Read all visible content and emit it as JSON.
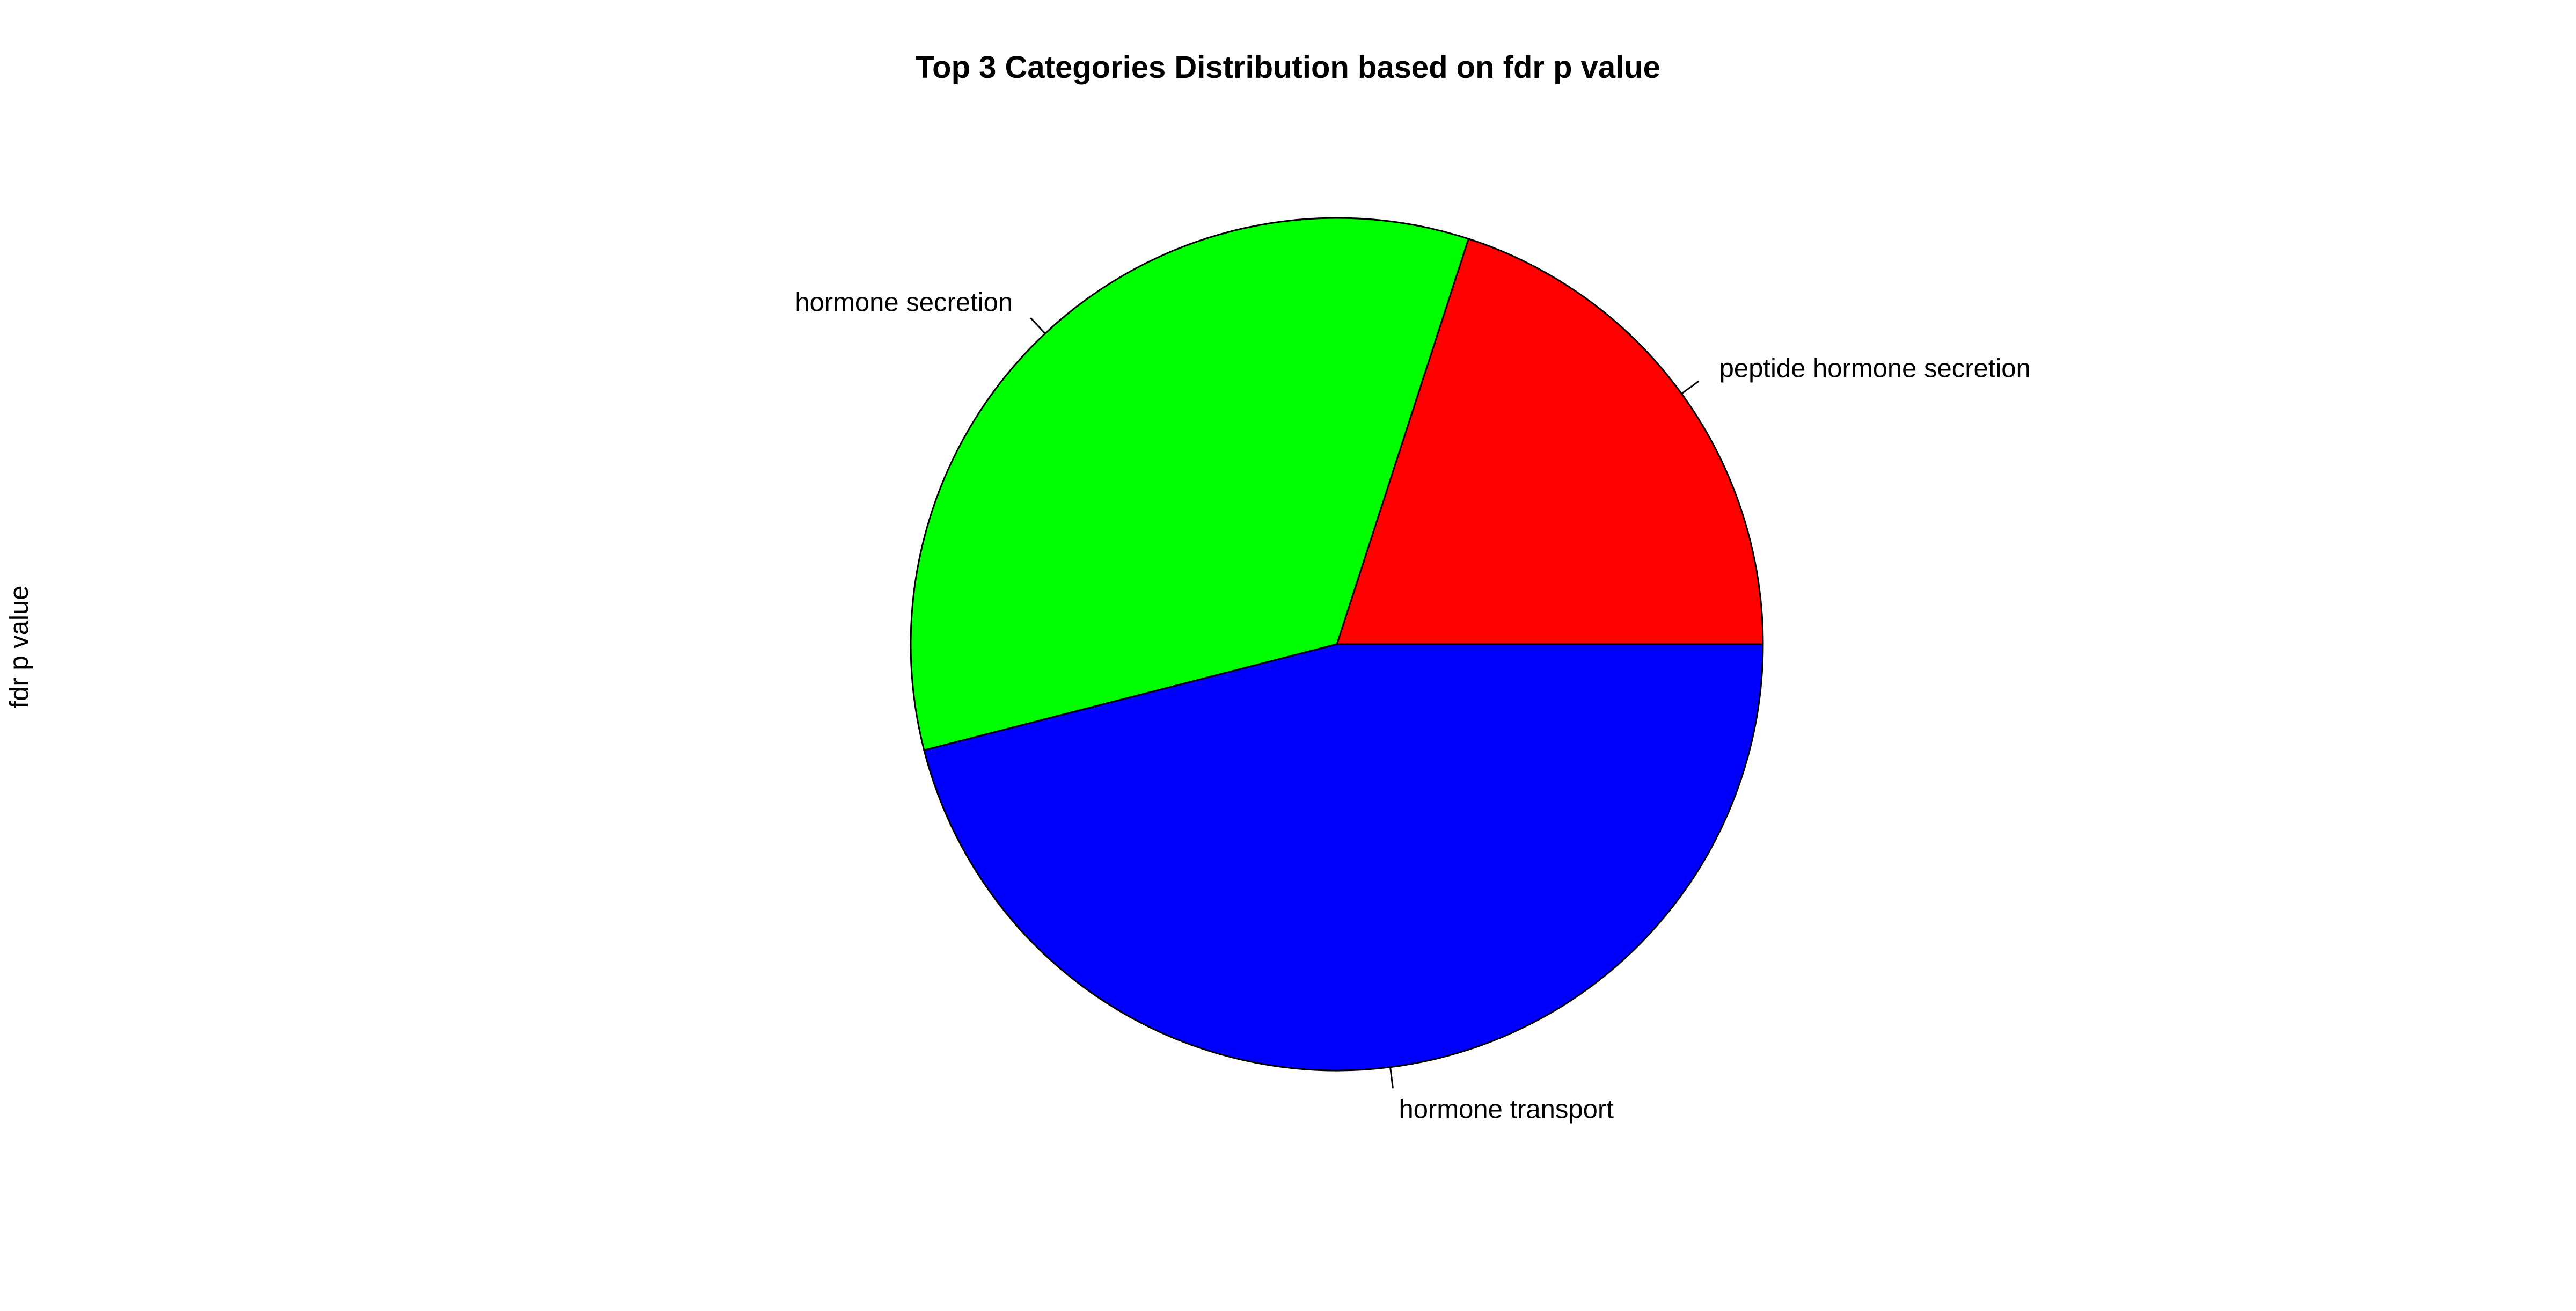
{
  "chart_data": {
    "type": "pie",
    "title": "Top 3 Categories Distribution based on fdr p value",
    "ylabel": "fdr p value",
    "xlabel": "",
    "start_angle_deg": 0,
    "direction": "counterclockwise",
    "slices": [
      {
        "label": "peptide hormone secretion",
        "value": 0.2,
        "color": "#FF0000"
      },
      {
        "label": "hormone secretion",
        "value": 0.34,
        "color": "#00FF00"
      },
      {
        "label": "hormone transport",
        "value": 0.46,
        "color": "#0000FF"
      }
    ]
  }
}
